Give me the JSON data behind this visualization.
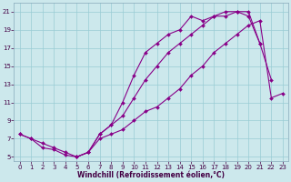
{
  "xlabel": "Windchill (Refroidissement éolien,°C)",
  "background_color": "#cce8ec",
  "grid_color": "#99ccd4",
  "line_color": "#880088",
  "xlim": [
    0,
    23
  ],
  "ylim": [
    5,
    22
  ],
  "yticks": [
    5,
    7,
    9,
    11,
    13,
    15,
    17,
    19,
    21
  ],
  "xticks": [
    0,
    1,
    2,
    3,
    4,
    5,
    6,
    7,
    8,
    9,
    10,
    11,
    12,
    13,
    14,
    15,
    16,
    17,
    18,
    19,
    20,
    21,
    22,
    23
  ],
  "line1_x": [
    0,
    1,
    2,
    3,
    4,
    5,
    6,
    7,
    8,
    9,
    10,
    11,
    12,
    13,
    14,
    15,
    16,
    17,
    18,
    19,
    20,
    21
  ],
  "line1_y": [
    7.5,
    7.0,
    6.5,
    6.0,
    5.5,
    5.0,
    5.5,
    7.5,
    8.5,
    11.0,
    14.0,
    16.5,
    17.5,
    18.5,
    19.0,
    20.5,
    20.0,
    20.5,
    21.0,
    21.0,
    20.5,
    17.5
  ],
  "line2_x": [
    0,
    1,
    2,
    3,
    4,
    5,
    6,
    7,
    8,
    9,
    10,
    11,
    12,
    13,
    14,
    15,
    16,
    17,
    18,
    19,
    20,
    21,
    22
  ],
  "line2_y": [
    7.5,
    7.0,
    6.0,
    5.8,
    5.2,
    5.0,
    5.5,
    7.5,
    8.5,
    9.5,
    11.5,
    13.5,
    15.0,
    16.5,
    17.5,
    18.5,
    19.5,
    20.5,
    20.5,
    21.0,
    21.0,
    17.5,
    13.5
  ],
  "line3_x": [
    5,
    6,
    7,
    8,
    9,
    10,
    11,
    12,
    13,
    14,
    15,
    16,
    17,
    18,
    19,
    20,
    21,
    22,
    23
  ],
  "line3_y": [
    5.0,
    5.5,
    7.0,
    7.5,
    8.0,
    9.0,
    10.0,
    10.5,
    11.5,
    12.5,
    14.0,
    15.0,
    16.5,
    17.5,
    18.5,
    19.5,
    20.0,
    11.5,
    12.0
  ],
  "marker": "D",
  "markersize": 2.0,
  "linewidth": 0.8,
  "fontsize_tick": 5.0,
  "fontsize_xlabel": 5.5,
  "tick_color": "#440044"
}
